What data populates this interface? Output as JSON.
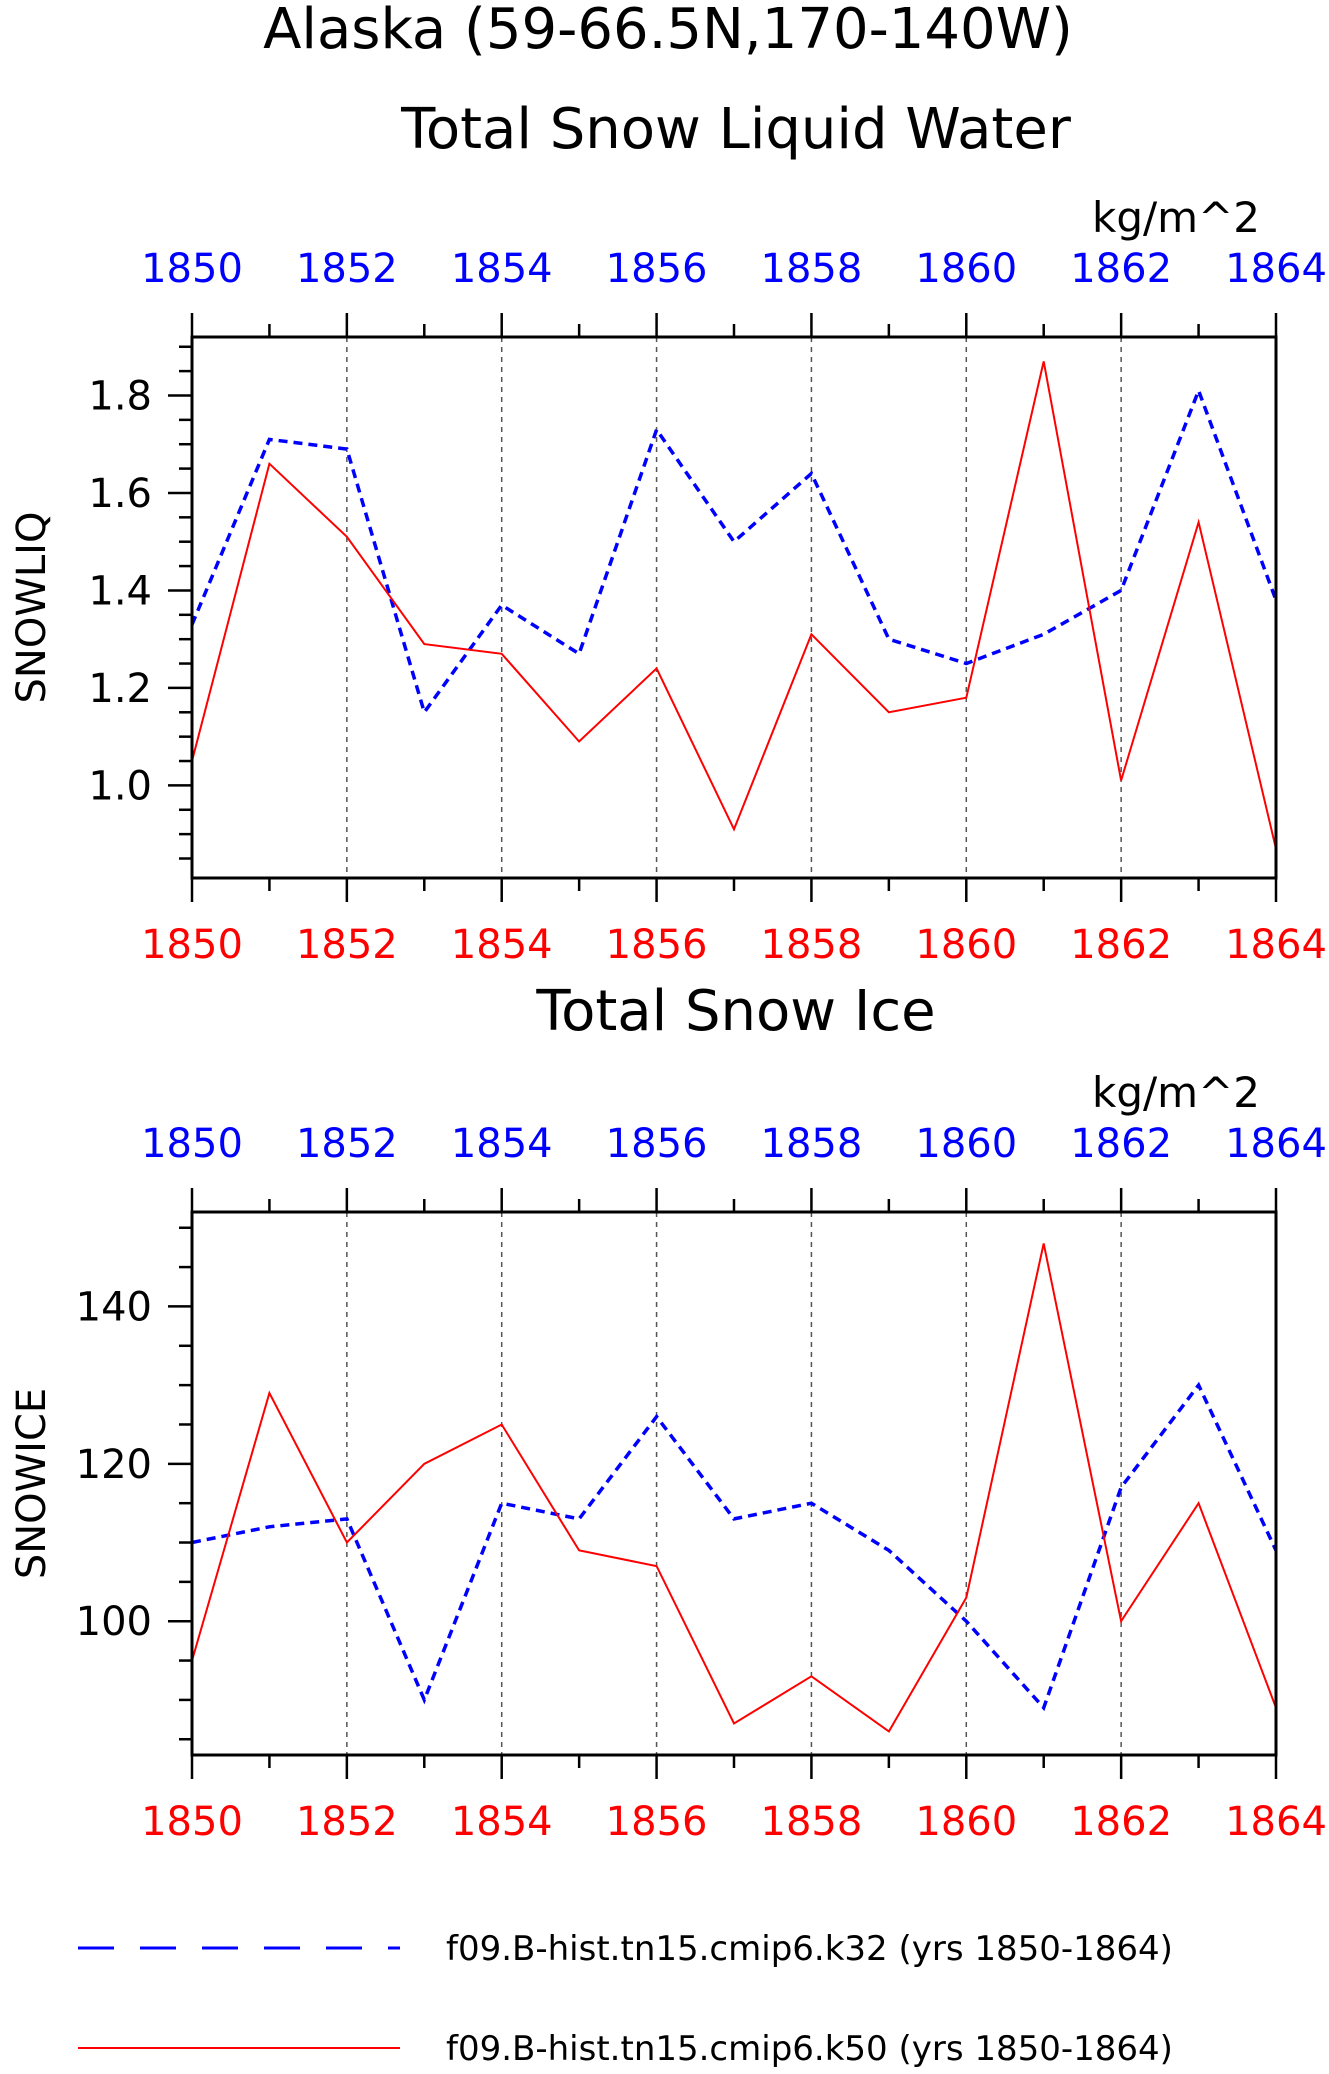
{
  "title": "Alaska (59-66.5N,170-140W)",
  "colors": {
    "k32": "#0000ff",
    "k50": "#ff0000",
    "grid": "#555555",
    "axis": "#000000"
  },
  "chart_data": [
    {
      "type": "line",
      "title": "Total Snow Liquid Water",
      "units": "kg/m^2",
      "ylabel": "SNOWLIQ",
      "xlim": [
        1850,
        1864
      ],
      "ylim": [
        0.81,
        1.92
      ],
      "yticks": [
        1.0,
        1.2,
        1.4,
        1.6,
        1.8
      ],
      "ytick_labels": [
        "1.0",
        "1.2",
        "1.4",
        "1.6",
        "1.8"
      ],
      "xticks": [
        1850,
        1852,
        1854,
        1856,
        1858,
        1860,
        1862,
        1864
      ],
      "xtick_labels": [
        "1850",
        "1852",
        "1854",
        "1856",
        "1858",
        "1860",
        "1862",
        "1864"
      ],
      "x": [
        1850,
        1851,
        1852,
        1853,
        1854,
        1855,
        1856,
        1857,
        1858,
        1859,
        1860,
        1861,
        1862,
        1863,
        1864
      ],
      "series": [
        {
          "key": "k32",
          "style": "dashed",
          "values": [
            1.33,
            1.71,
            1.69,
            1.15,
            1.37,
            1.27,
            1.73,
            1.5,
            1.64,
            1.3,
            1.25,
            1.31,
            1.4,
            1.81,
            1.38
          ]
        },
        {
          "key": "k50",
          "style": "solid",
          "values": [
            1.05,
            1.66,
            1.51,
            1.29,
            1.27,
            1.09,
            1.24,
            0.91,
            1.31,
            1.15,
            1.18,
            1.87,
            1.01,
            1.54,
            0.87
          ]
        }
      ]
    },
    {
      "type": "line",
      "title": "Total Snow Ice",
      "units": "kg/m^2",
      "ylabel": "SNOWICE",
      "xlim": [
        1850,
        1864
      ],
      "ylim": [
        83,
        152
      ],
      "yticks": [
        100,
        120,
        140
      ],
      "ytick_labels": [
        "100",
        "120",
        "140"
      ],
      "xticks": [
        1850,
        1852,
        1854,
        1856,
        1858,
        1860,
        1862,
        1864
      ],
      "xtick_labels": [
        "1850",
        "1852",
        "1854",
        "1856",
        "1858",
        "1860",
        "1862",
        "1864"
      ],
      "x": [
        1850,
        1851,
        1852,
        1853,
        1854,
        1855,
        1856,
        1857,
        1858,
        1859,
        1860,
        1861,
        1862,
        1863,
        1864
      ],
      "series": [
        {
          "key": "k32",
          "style": "dashed",
          "values": [
            110,
            112,
            113,
            90,
            115,
            113,
            126,
            113,
            115,
            109,
            100,
            89,
            117,
            130,
            109
          ]
        },
        {
          "key": "k50",
          "style": "solid",
          "values": [
            95,
            129,
            110,
            120,
            125,
            109,
            107,
            87,
            93,
            86,
            103,
            148,
            100,
            115,
            89
          ]
        }
      ]
    }
  ],
  "legend": [
    {
      "key": "k32",
      "style": "dashed",
      "label": "f09.B-hist.tn15.cmip6.k32 (yrs 1850-1864)"
    },
    {
      "key": "k50",
      "style": "solid",
      "label": "f09.B-hist.tn15.cmip6.k50 (yrs 1850-1864)"
    }
  ]
}
